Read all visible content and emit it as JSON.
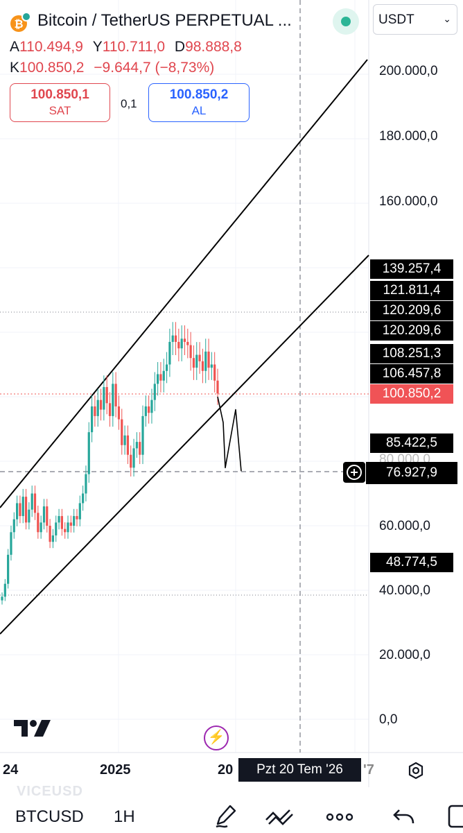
{
  "header": {
    "title": "Bitcoin / TetherUS PERPETUAL ...",
    "coin_icon": "bitcoin-coin-icon",
    "ohlc": {
      "open_label": "A",
      "open_value": "110.494,9",
      "high_label": "Y",
      "high_value": "110.711,0",
      "low_label": "D",
      "low_value": "98.888,8",
      "close_label": "K",
      "close_value": "100.850,2",
      "change": "−9.644,7 (−8,73%)"
    },
    "sell": {
      "price": "100.850,1",
      "label": "SAT"
    },
    "buy": {
      "price": "100.850,2",
      "label": "AL"
    },
    "spread": "0,1",
    "currency": "USDT"
  },
  "price_axis": {
    "labels": [
      "200.000,0",
      "180.000,0",
      "160.000,0",
      "60.000,0",
      "40.000,0",
      "20.000,0",
      "0,0"
    ],
    "hidden_label": "80.000,0",
    "tags": [
      "139.257,4",
      "121.811,4",
      "120.209,6",
      "120.209,6",
      "108.251,3",
      "106.457,8",
      "85.422,5",
      "48.774,5"
    ],
    "last_price_tag": "100.850,2",
    "crosshair_tag": "76.927,9"
  },
  "time_axis": {
    "labels": [
      "24",
      "2025",
      "20"
    ],
    "tail": "'7",
    "tooltip": "Pzt 20 Tem '26"
  },
  "toolbar": {
    "symbol": "BTCUSD",
    "interval": "1H",
    "ghost_text": "VICEUSD"
  },
  "icons": [
    "tradingview-logo-icon",
    "flash-icon",
    "gear-icon",
    "pen-icon",
    "drawing-tools-icon",
    "more-icon",
    "undo-icon",
    "layout-icon",
    "plus-icon",
    "chevron-down-icon"
  ],
  "colors": {
    "up": "#26a69a",
    "down": "#ef5350",
    "sell": "#e0464e",
    "buy": "#2962ff",
    "accent": "#9c27b0"
  },
  "chart_data": {
    "type": "candlestick",
    "symbol": "BTCUSDT.P",
    "x": [
      "2024",
      "2025",
      "2026"
    ],
    "y_unit": "USDT",
    "ylim": [
      0,
      210000
    ],
    "last_price": 100850.2,
    "crosshair_price": 76927.9,
    "channel_upper": {
      "from": {
        "x": "2023",
        "y": 69000
      },
      "to": {
        "x": "2026",
        "y": 207000
      }
    },
    "channel_lower": {
      "from": {
        "x": "2023",
        "y": 33000
      },
      "to": {
        "x": "2026",
        "y": 141000
      }
    },
    "horizontal_levels": [
      121811.4,
      100850.2,
      76927.9,
      40000
    ],
    "closes": [
      38000,
      42000,
      51000,
      58000,
      62000,
      67000,
      63000,
      69000,
      61000,
      65000,
      70000,
      64000,
      58000,
      61000,
      66000,
      60000,
      55000,
      57000,
      61000,
      63000,
      59000,
      58000,
      61000,
      60000,
      63000,
      62000,
      67000,
      70000,
      76000,
      89000,
      97000,
      94000,
      99000,
      96000,
      103000,
      98000,
      94000,
      104000,
      97000,
      93000,
      85000,
      88000,
      82000,
      78000,
      84000,
      86000,
      82000,
      94000,
      97000,
      95000,
      99000,
      104000,
      107000,
      105000,
      108000,
      110000,
      117000,
      119000,
      117000,
      115000,
      118000,
      117000,
      116000,
      112000,
      109000,
      113000,
      111000,
      108000,
      114000,
      109000,
      110000,
      105000,
      101000
    ],
    "drawn_forecast": [
      100000,
      92000,
      78000,
      96000,
      76927.9
    ]
  }
}
